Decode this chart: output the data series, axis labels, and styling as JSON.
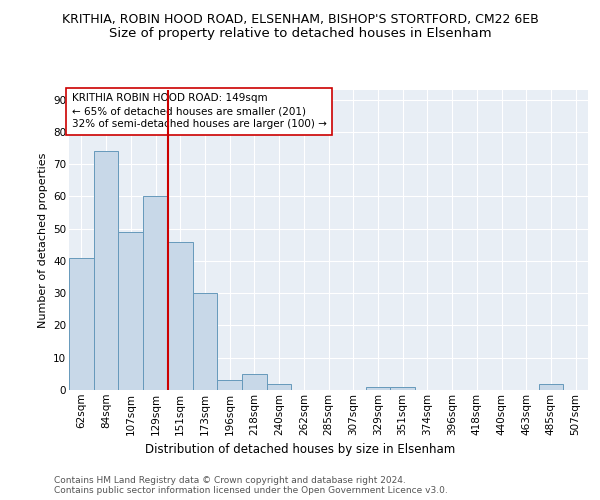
{
  "title1": "KRITHIA, ROBIN HOOD ROAD, ELSENHAM, BISHOP'S STORTFORD, CM22 6EB",
  "title2": "Size of property relative to detached houses in Elsenham",
  "xlabel": "Distribution of detached houses by size in Elsenham",
  "ylabel": "Number of detached properties",
  "bin_labels": [
    "62sqm",
    "84sqm",
    "107sqm",
    "129sqm",
    "151sqm",
    "173sqm",
    "196sqm",
    "218sqm",
    "240sqm",
    "262sqm",
    "285sqm",
    "307sqm",
    "329sqm",
    "351sqm",
    "374sqm",
    "396sqm",
    "418sqm",
    "440sqm",
    "463sqm",
    "485sqm",
    "507sqm"
  ],
  "bar_values": [
    41,
    74,
    49,
    60,
    46,
    30,
    3,
    5,
    2,
    0,
    0,
    0,
    1,
    1,
    0,
    0,
    0,
    0,
    0,
    2,
    0
  ],
  "bar_color": "#c8d8e8",
  "bar_edge_color": "#6699bb",
  "vline_x_index": 4,
  "vline_color": "#cc0000",
  "annotation_text": "KRITHIA ROBIN HOOD ROAD: 149sqm\n← 65% of detached houses are smaller (201)\n32% of semi-detached houses are larger (100) →",
  "annotation_box_color": "#ffffff",
  "annotation_box_edge_color": "#cc0000",
  "ylim": [
    0,
    93
  ],
  "yticks": [
    0,
    10,
    20,
    30,
    40,
    50,
    60,
    70,
    80,
    90
  ],
  "background_color": "#e8eef5",
  "grid_color": "#ffffff",
  "footer_text": "Contains HM Land Registry data © Crown copyright and database right 2024.\nContains public sector information licensed under the Open Government Licence v3.0.",
  "title1_fontsize": 9,
  "title2_fontsize": 9.5,
  "xlabel_fontsize": 8.5,
  "ylabel_fontsize": 8,
  "tick_fontsize": 7.5,
  "annotation_fontsize": 7.5,
  "footer_fontsize": 6.5
}
